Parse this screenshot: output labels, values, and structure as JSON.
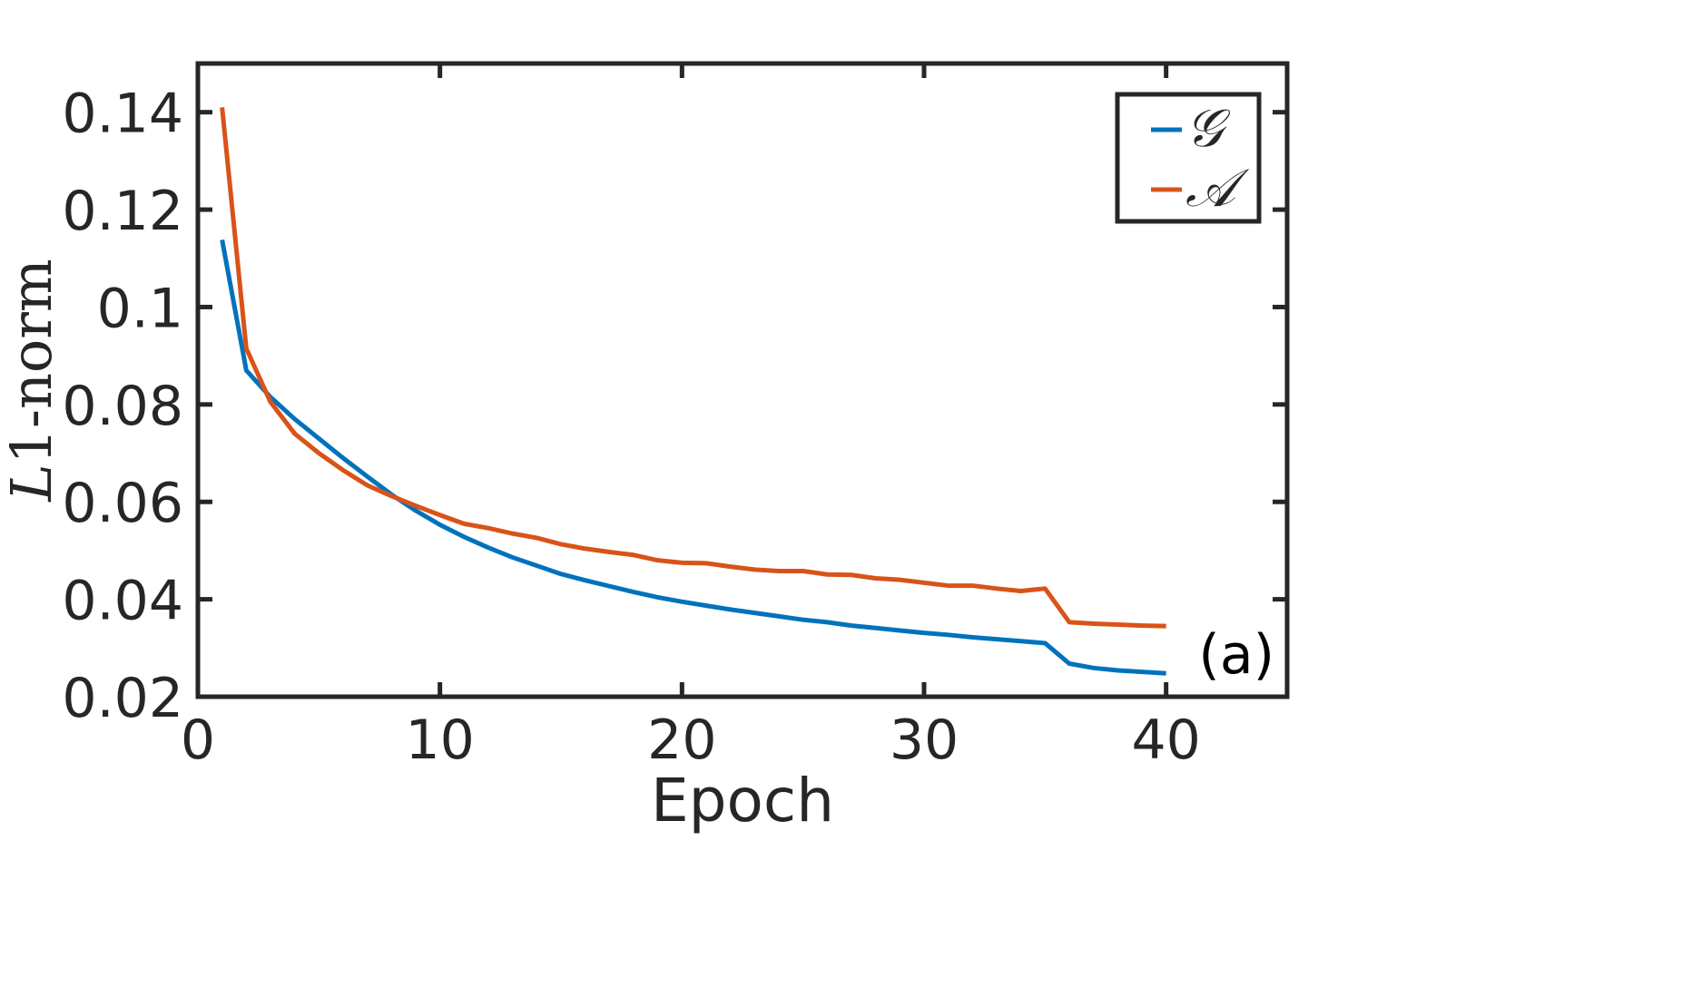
{
  "chart_data": {
    "type": "line",
    "title": "",
    "xlabel": "Epoch",
    "ylabel": "L1-norm",
    "ylabel_parts": {
      "italic": "L",
      "rest": "1-norm"
    },
    "xlim": [
      0,
      45
    ],
    "ylim": [
      0.02,
      0.15
    ],
    "xticks": [
      0,
      10,
      20,
      30,
      40
    ],
    "xtick_labels": [
      "0",
      "10",
      "20",
      "30",
      "40"
    ],
    "yticks": [
      0.02,
      0.04,
      0.06,
      0.08,
      0.1,
      0.12,
      0.14
    ],
    "ytick_labels": [
      "0.02",
      "0.04",
      "0.06",
      "0.08",
      "0.1",
      "0.12",
      "0.14"
    ],
    "grid": false,
    "legend_position": "top-right",
    "annotation": "(a)",
    "x": [
      1,
      2,
      3,
      4,
      5,
      6,
      7,
      8,
      9,
      10,
      11,
      12,
      13,
      14,
      15,
      16,
      17,
      18,
      19,
      20,
      21,
      22,
      23,
      24,
      25,
      26,
      27,
      28,
      29,
      30,
      31,
      32,
      33,
      34,
      35,
      36,
      37,
      38,
      39,
      40
    ],
    "series": [
      {
        "name": "𝒢",
        "color": "#0072BD",
        "values": [
          0.1138,
          0.087,
          0.0815,
          0.077,
          0.073,
          0.069,
          0.0652,
          0.0615,
          0.0582,
          0.0553,
          0.0528,
          0.0506,
          0.0486,
          0.0469,
          0.0452,
          0.0439,
          0.0427,
          0.0415,
          0.0404,
          0.0395,
          0.0387,
          0.0379,
          0.0372,
          0.0365,
          0.0358,
          0.0353,
          0.0346,
          0.0341,
          0.0336,
          0.0331,
          0.0327,
          0.0322,
          0.0318,
          0.0314,
          0.031,
          0.0268,
          0.0259,
          0.0254,
          0.0251,
          0.0248
        ]
      },
      {
        "name": "𝒜",
        "color": "#D95319",
        "values": [
          0.141,
          0.0915,
          0.0805,
          0.074,
          0.07,
          0.0665,
          0.0634,
          0.0612,
          0.0592,
          0.0573,
          0.0555,
          0.0546,
          0.0535,
          0.0526,
          0.0513,
          0.0504,
          0.0497,
          0.0491,
          0.048,
          0.0475,
          0.0474,
          0.0467,
          0.0461,
          0.0458,
          0.0458,
          0.0451,
          0.045,
          0.0443,
          0.044,
          0.0434,
          0.0428,
          0.0428,
          0.0422,
          0.0417,
          0.0422,
          0.0353,
          0.035,
          0.0348,
          0.0346,
          0.0345
        ]
      }
    ]
  }
}
